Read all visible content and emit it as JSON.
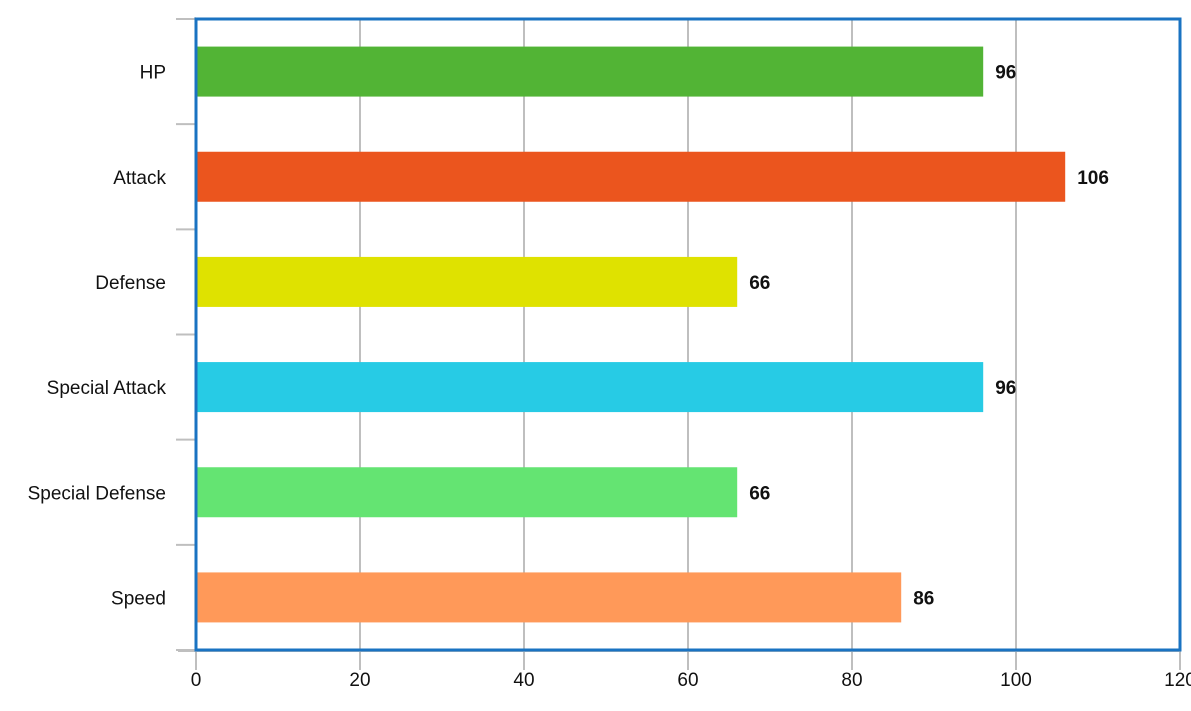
{
  "chart_data": {
    "type": "bar",
    "orientation": "horizontal",
    "categories": [
      "HP",
      "Attack",
      "Defense",
      "Special Attack",
      "Special Defense",
      "Speed"
    ],
    "values": [
      96,
      106,
      66,
      96,
      66,
      86
    ],
    "bar_colors": [
      "#52b435",
      "#eb551e",
      "#dfe200",
      "#27cbe5",
      "#64e472",
      "#ff9959"
    ],
    "title": "",
    "xlabel": "",
    "ylabel": "",
    "xlim": [
      0,
      120
    ],
    "xticks": [
      "0",
      "20",
      "40",
      "60",
      "80",
      "100",
      "120"
    ],
    "grid": "vertical",
    "legend": "none",
    "data_labels": true,
    "frame_color": "#1a73c2",
    "grid_color": "#bfbfbf"
  }
}
